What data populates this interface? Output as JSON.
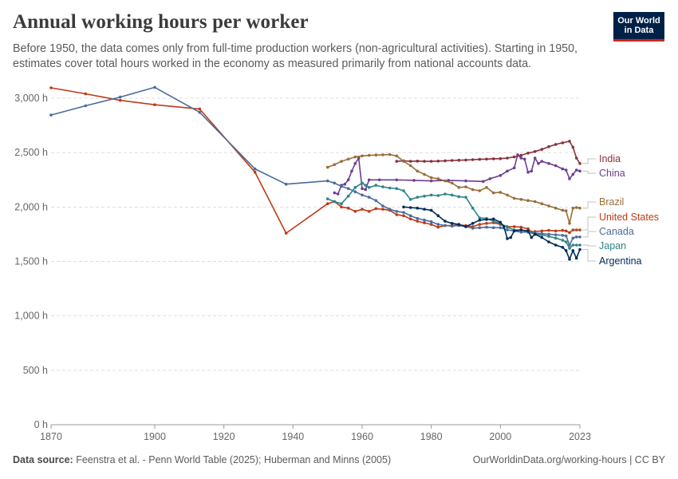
{
  "header": {
    "title": "Annual working hours per worker",
    "subtitle": "Before 1950, the data comes only from full-time production workers (non-agricultural activities). Starting in 1950, estimates cover total hours worked in the economy as measured primarily from national accounts data.",
    "logo_line1": "Our World",
    "logo_line2": "in Data"
  },
  "footer": {
    "source_label": "Data source:",
    "source_text": "Feenstra et al. - Penn World Table (2025); Huberman and Minns (2005)",
    "url": "OurWorldinData.org/working-hours | CC BY"
  },
  "chart_data": {
    "type": "line",
    "title": "Annual working hours per worker",
    "xlim": [
      1870,
      2023
    ],
    "ylim": [
      0,
      3000
    ],
    "x_ticks": [
      1870,
      1900,
      1920,
      1940,
      1960,
      1980,
      2000,
      2023
    ],
    "x_tick_labels": [
      "1870",
      "1900",
      "1920",
      "1940",
      "1960",
      "1980",
      "2000",
      "2023"
    ],
    "y_ticks": [
      0,
      500,
      1000,
      1500,
      2000,
      2500,
      3000
    ],
    "y_tick_labels": [
      "0 h",
      "500 h",
      "1,000 h",
      "1,500 h",
      "2,000 h",
      "2,500 h",
      "3,000 h"
    ],
    "grid": true,
    "series": [
      {
        "name": "India",
        "color": "#883039",
        "points": [
          [
            1970,
            2420
          ],
          [
            1972,
            2425
          ],
          [
            1974,
            2420
          ],
          [
            1976,
            2422
          ],
          [
            1978,
            2420
          ],
          [
            1980,
            2420
          ],
          [
            1982,
            2422
          ],
          [
            1984,
            2425
          ],
          [
            1986,
            2428
          ],
          [
            1988,
            2430
          ],
          [
            1990,
            2432
          ],
          [
            1992,
            2435
          ],
          [
            1994,
            2438
          ],
          [
            1996,
            2440
          ],
          [
            1998,
            2443
          ],
          [
            2000,
            2445
          ],
          [
            2002,
            2450
          ],
          [
            2004,
            2460
          ],
          [
            2006,
            2475
          ],
          [
            2008,
            2495
          ],
          [
            2010,
            2510
          ],
          [
            2012,
            2530
          ],
          [
            2014,
            2555
          ],
          [
            2016,
            2575
          ],
          [
            2018,
            2590
          ],
          [
            2020,
            2605
          ],
          [
            2021,
            2550
          ],
          [
            2022,
            2450
          ],
          [
            2023,
            2400
          ]
        ]
      },
      {
        "name": "China",
        "color": "#6d3e91",
        "points": [
          [
            1952,
            2130
          ],
          [
            1953,
            2120
          ],
          [
            1954,
            2200
          ],
          [
            1955,
            2210
          ],
          [
            1956,
            2250
          ],
          [
            1957,
            2330
          ],
          [
            1958,
            2400
          ],
          [
            1959,
            2450
          ],
          [
            1960,
            2170
          ],
          [
            1961,
            2160
          ],
          [
            1962,
            2250
          ],
          [
            1965,
            2250
          ],
          [
            1970,
            2250
          ],
          [
            1975,
            2245
          ],
          [
            1980,
            2240
          ],
          [
            1985,
            2245
          ],
          [
            1990,
            2240
          ],
          [
            1995,
            2235
          ],
          [
            1997,
            2260
          ],
          [
            2000,
            2290
          ],
          [
            2002,
            2330
          ],
          [
            2004,
            2360
          ],
          [
            2005,
            2480
          ],
          [
            2006,
            2450
          ],
          [
            2007,
            2440
          ],
          [
            2008,
            2320
          ],
          [
            2009,
            2330
          ],
          [
            2010,
            2450
          ],
          [
            2011,
            2400
          ],
          [
            2012,
            2420
          ],
          [
            2014,
            2400
          ],
          [
            2016,
            2380
          ],
          [
            2018,
            2350
          ],
          [
            2019,
            2340
          ],
          [
            2020,
            2260
          ],
          [
            2021,
            2300
          ],
          [
            2022,
            2340
          ],
          [
            2023,
            2330
          ]
        ]
      },
      {
        "name": "Brazil",
        "color": "#996d39",
        "points": [
          [
            1950,
            2365
          ],
          [
            1952,
            2390
          ],
          [
            1954,
            2420
          ],
          [
            1956,
            2440
          ],
          [
            1958,
            2460
          ],
          [
            1960,
            2470
          ],
          [
            1962,
            2475
          ],
          [
            1964,
            2478
          ],
          [
            1966,
            2480
          ],
          [
            1968,
            2482
          ],
          [
            1970,
            2470
          ],
          [
            1972,
            2420
          ],
          [
            1974,
            2380
          ],
          [
            1976,
            2330
          ],
          [
            1978,
            2300
          ],
          [
            1980,
            2270
          ],
          [
            1982,
            2260
          ],
          [
            1984,
            2240
          ],
          [
            1986,
            2220
          ],
          [
            1988,
            2180
          ],
          [
            1990,
            2185
          ],
          [
            1992,
            2160
          ],
          [
            1994,
            2150
          ],
          [
            1996,
            2180
          ],
          [
            1998,
            2130
          ],
          [
            2000,
            2135
          ],
          [
            2002,
            2110
          ],
          [
            2004,
            2080
          ],
          [
            2006,
            2070
          ],
          [
            2008,
            2060
          ],
          [
            2010,
            2050
          ],
          [
            2012,
            2030
          ],
          [
            2014,
            2010
          ],
          [
            2016,
            1990
          ],
          [
            2018,
            1970
          ],
          [
            2019,
            1965
          ],
          [
            2020,
            1850
          ],
          [
            2021,
            1990
          ],
          [
            2022,
            1995
          ],
          [
            2023,
            1990
          ]
        ]
      },
      {
        "name": "United States",
        "color": "#be3a16",
        "points": [
          [
            1870,
            3095
          ],
          [
            1880,
            3040
          ],
          [
            1890,
            2980
          ],
          [
            1900,
            2940
          ],
          [
            1913,
            2900
          ],
          [
            1929,
            2320
          ],
          [
            1938,
            1760
          ],
          [
            1950,
            2030
          ],
          [
            1952,
            2050
          ],
          [
            1954,
            2000
          ],
          [
            1956,
            1990
          ],
          [
            1958,
            1960
          ],
          [
            1960,
            1980
          ],
          [
            1962,
            1960
          ],
          [
            1964,
            1985
          ],
          [
            1966,
            1980
          ],
          [
            1968,
            1970
          ],
          [
            1970,
            1930
          ],
          [
            1972,
            1920
          ],
          [
            1974,
            1890
          ],
          [
            1976,
            1870
          ],
          [
            1978,
            1855
          ],
          [
            1980,
            1840
          ],
          [
            1982,
            1815
          ],
          [
            1984,
            1830
          ],
          [
            1986,
            1830
          ],
          [
            1988,
            1835
          ],
          [
            1990,
            1830
          ],
          [
            1992,
            1820
          ],
          [
            1994,
            1840
          ],
          [
            1996,
            1850
          ],
          [
            1998,
            1855
          ],
          [
            2000,
            1840
          ],
          [
            2002,
            1820
          ],
          [
            2004,
            1820
          ],
          [
            2006,
            1815
          ],
          [
            2008,
            1800
          ],
          [
            2009,
            1770
          ],
          [
            2010,
            1775
          ],
          [
            2012,
            1780
          ],
          [
            2014,
            1785
          ],
          [
            2016,
            1780
          ],
          [
            2018,
            1785
          ],
          [
            2019,
            1780
          ],
          [
            2020,
            1765
          ],
          [
            2021,
            1790
          ],
          [
            2022,
            1790
          ],
          [
            2023,
            1790
          ]
        ]
      },
      {
        "name": "Canada",
        "color": "#4c6a9c",
        "points": [
          [
            1870,
            2845
          ],
          [
            1880,
            2930
          ],
          [
            1890,
            3010
          ],
          [
            1900,
            3100
          ],
          [
            1913,
            2870
          ],
          [
            1929,
            2350
          ],
          [
            1938,
            2210
          ],
          [
            1950,
            2240
          ],
          [
            1952,
            2220
          ],
          [
            1954,
            2190
          ],
          [
            1956,
            2170
          ],
          [
            1958,
            2140
          ],
          [
            1960,
            2110
          ],
          [
            1962,
            2090
          ],
          [
            1964,
            2060
          ],
          [
            1966,
            2010
          ],
          [
            1968,
            1980
          ],
          [
            1970,
            1960
          ],
          [
            1972,
            1950
          ],
          [
            1974,
            1920
          ],
          [
            1976,
            1895
          ],
          [
            1978,
            1880
          ],
          [
            1980,
            1865
          ],
          [
            1982,
            1840
          ],
          [
            1984,
            1830
          ],
          [
            1986,
            1825
          ],
          [
            1988,
            1830
          ],
          [
            1990,
            1820
          ],
          [
            1992,
            1805
          ],
          [
            1994,
            1810
          ],
          [
            1996,
            1815
          ],
          [
            1998,
            1810
          ],
          [
            2000,
            1810
          ],
          [
            2002,
            1790
          ],
          [
            2004,
            1780
          ],
          [
            2006,
            1770
          ],
          [
            2008,
            1770
          ],
          [
            2010,
            1760
          ],
          [
            2012,
            1755
          ],
          [
            2014,
            1750
          ],
          [
            2016,
            1745
          ],
          [
            2018,
            1740
          ],
          [
            2019,
            1735
          ],
          [
            2020,
            1650
          ],
          [
            2021,
            1715
          ],
          [
            2022,
            1725
          ],
          [
            2023,
            1725
          ]
        ]
      },
      {
        "name": "Japan",
        "color": "#2d8587",
        "points": [
          [
            1950,
            2075
          ],
          [
            1952,
            2050
          ],
          [
            1954,
            2030
          ],
          [
            1956,
            2100
          ],
          [
            1958,
            2180
          ],
          [
            1960,
            2220
          ],
          [
            1961,
            2200
          ],
          [
            1962,
            2180
          ],
          [
            1964,
            2200
          ],
          [
            1966,
            2185
          ],
          [
            1968,
            2175
          ],
          [
            1970,
            2170
          ],
          [
            1972,
            2150
          ],
          [
            1974,
            2070
          ],
          [
            1976,
            2090
          ],
          [
            1978,
            2100
          ],
          [
            1980,
            2110
          ],
          [
            1982,
            2105
          ],
          [
            1984,
            2120
          ],
          [
            1986,
            2110
          ],
          [
            1988,
            2095
          ],
          [
            1990,
            2090
          ],
          [
            1992,
            1990
          ],
          [
            1994,
            1900
          ],
          [
            1996,
            1895
          ],
          [
            1998,
            1870
          ],
          [
            2000,
            1850
          ],
          [
            2002,
            1815
          ],
          [
            2004,
            1790
          ],
          [
            2006,
            1790
          ],
          [
            2008,
            1770
          ],
          [
            2010,
            1750
          ],
          [
            2012,
            1745
          ],
          [
            2014,
            1730
          ],
          [
            2016,
            1715
          ],
          [
            2018,
            1695
          ],
          [
            2019,
            1680
          ],
          [
            2020,
            1620
          ],
          [
            2021,
            1650
          ],
          [
            2022,
            1650
          ],
          [
            2023,
            1650
          ]
        ]
      },
      {
        "name": "Argentina",
        "color": "#00295b",
        "points": [
          [
            1972,
            2000
          ],
          [
            1974,
            1995
          ],
          [
            1976,
            1990
          ],
          [
            1978,
            1980
          ],
          [
            1980,
            1970
          ],
          [
            1982,
            1920
          ],
          [
            1984,
            1870
          ],
          [
            1986,
            1850
          ],
          [
            1988,
            1840
          ],
          [
            1990,
            1820
          ],
          [
            1992,
            1850
          ],
          [
            1994,
            1880
          ],
          [
            1996,
            1885
          ],
          [
            1998,
            1890
          ],
          [
            2000,
            1860
          ],
          [
            2001,
            1820
          ],
          [
            2002,
            1710
          ],
          [
            2003,
            1720
          ],
          [
            2004,
            1780
          ],
          [
            2006,
            1790
          ],
          [
            2008,
            1780
          ],
          [
            2009,
            1720
          ],
          [
            2010,
            1750
          ],
          [
            2012,
            1720
          ],
          [
            2014,
            1680
          ],
          [
            2016,
            1650
          ],
          [
            2018,
            1630
          ],
          [
            2019,
            1600
          ],
          [
            2020,
            1520
          ],
          [
            2021,
            1600
          ],
          [
            2022,
            1530
          ],
          [
            2023,
            1610
          ]
        ]
      }
    ]
  }
}
